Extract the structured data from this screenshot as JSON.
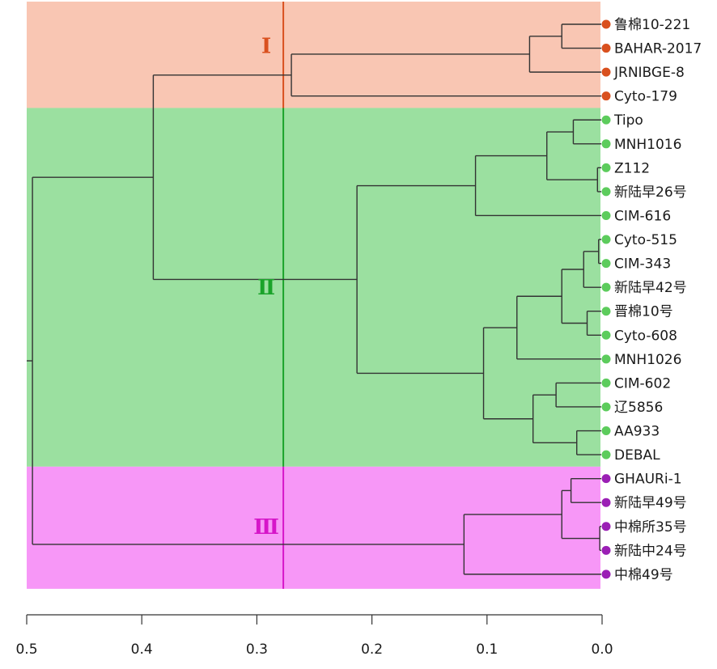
{
  "axis": {
    "min": 0.0,
    "max": 0.5,
    "reversed": true,
    "ticks": [
      {
        "value": 0.5,
        "label": "0.5"
      },
      {
        "value": 0.4,
        "label": "0.4"
      },
      {
        "value": 0.3,
        "label": "0.3"
      },
      {
        "value": 0.2,
        "label": "0.2"
      },
      {
        "value": 0.1,
        "label": "0.1"
      },
      {
        "value": 0.0,
        "label": "0.0"
      }
    ]
  },
  "cut_height": 0.277,
  "clusters": [
    {
      "id": "I",
      "label": "Ⅰ",
      "band_color": "#f9c6b3",
      "line_color": "#d9501e",
      "dot_color": "#d9501e",
      "leaf_start": 0,
      "leaf_end": 3,
      "label_at_leaf": 0.9
    },
    {
      "id": "II",
      "label": "Ⅱ",
      "band_color": "#9be0a0",
      "line_color": "#1aa32a",
      "dot_color": "#5ccc5c",
      "leaf_start": 4,
      "leaf_end": 18,
      "label_at_leaf": 11.0
    },
    {
      "id": "III",
      "label": "Ⅲ",
      "band_color": "#f797f7",
      "line_color": "#d616c9",
      "dot_color": "#9b1fb5",
      "leaf_start": 19,
      "leaf_end": 23,
      "label_at_leaf": 21.0
    }
  ],
  "leaves": [
    {
      "label": "鲁棉10-221",
      "cluster": "I"
    },
    {
      "label": "BAHAR-2017",
      "cluster": "I"
    },
    {
      "label": "JRNIBGE-8",
      "cluster": "I"
    },
    {
      "label": "Cyto-179",
      "cluster": "I"
    },
    {
      "label": "Tipo",
      "cluster": "II"
    },
    {
      "label": "MNH1016",
      "cluster": "II"
    },
    {
      "label": "Z112",
      "cluster": "II"
    },
    {
      "label": "新陆早26号",
      "cluster": "II"
    },
    {
      "label": "CIM-616",
      "cluster": "II"
    },
    {
      "label": "Cyto-515",
      "cluster": "II"
    },
    {
      "label": "CIM-343",
      "cluster": "II"
    },
    {
      "label": "新陆早42号",
      "cluster": "II"
    },
    {
      "label": "晋棉10号",
      "cluster": "II"
    },
    {
      "label": "Cyto-608",
      "cluster": "II"
    },
    {
      "label": "MNH1026",
      "cluster": "II"
    },
    {
      "label": "CIM-602",
      "cluster": "II"
    },
    {
      "label": "辽5856",
      "cluster": "II"
    },
    {
      "label": "AA933",
      "cluster": "II"
    },
    {
      "label": "DEBAL",
      "cluster": "II"
    },
    {
      "label": "GHAURi-1",
      "cluster": "III"
    },
    {
      "label": "新陆早49号",
      "cluster": "III"
    },
    {
      "label": "中棉所35号",
      "cluster": "III"
    },
    {
      "label": "新陆中24号",
      "cluster": "III"
    },
    {
      "label": "中棉49号",
      "cluster": "III"
    }
  ],
  "tree": {
    "h": 0.495,
    "children": [
      {
        "h": 0.39,
        "children": [
          {
            "h": 0.27,
            "children": [
              {
                "h": 0.063,
                "children": [
                  {
                    "h": 0.035,
                    "children": [
                      {
                        "leaf": 0
                      },
                      {
                        "leaf": 1
                      }
                    ]
                  },
                  {
                    "leaf": 2
                  }
                ]
              },
              {
                "leaf": 3
              }
            ]
          },
          {
            "h": 0.213,
            "children": [
              {
                "h": 0.11,
                "children": [
                  {
                    "h": 0.048,
                    "children": [
                      {
                        "h": 0.025,
                        "children": [
                          {
                            "leaf": 4
                          },
                          {
                            "leaf": 5
                          }
                        ]
                      },
                      {
                        "h": 0.004,
                        "children": [
                          {
                            "leaf": 6
                          },
                          {
                            "leaf": 7
                          }
                        ]
                      }
                    ]
                  },
                  {
                    "leaf": 8
                  }
                ]
              },
              {
                "h": 0.103,
                "children": [
                  {
                    "h": 0.074,
                    "children": [
                      {
                        "h": 0.035,
                        "children": [
                          {
                            "h": 0.016,
                            "children": [
                              {
                                "h": 0.003,
                                "children": [
                                  {
                                    "leaf": 9
                                  },
                                  {
                                    "leaf": 10
                                  }
                                ]
                              },
                              {
                                "leaf": 11
                              }
                            ]
                          },
                          {
                            "h": 0.013,
                            "children": [
                              {
                                "leaf": 12
                              },
                              {
                                "leaf": 13
                              }
                            ]
                          }
                        ]
                      },
                      {
                        "leaf": 14
                      }
                    ]
                  },
                  {
                    "h": 0.06,
                    "children": [
                      {
                        "h": 0.04,
                        "children": [
                          {
                            "leaf": 15
                          },
                          {
                            "leaf": 16
                          }
                        ]
                      },
                      {
                        "h": 0.022,
                        "children": [
                          {
                            "leaf": 17
                          },
                          {
                            "leaf": 18
                          }
                        ]
                      }
                    ]
                  }
                ]
              }
            ]
          }
        ]
      },
      {
        "h": 0.12,
        "children": [
          {
            "h": 0.035,
            "children": [
              {
                "h": 0.027,
                "children": [
                  {
                    "leaf": 19
                  },
                  {
                    "leaf": 20
                  }
                ]
              },
              {
                "h": 0.002,
                "children": [
                  {
                    "leaf": 21
                  },
                  {
                    "leaf": 22
                  }
                ]
              }
            ]
          },
          {
            "leaf": 23
          }
        ]
      }
    ]
  }
}
